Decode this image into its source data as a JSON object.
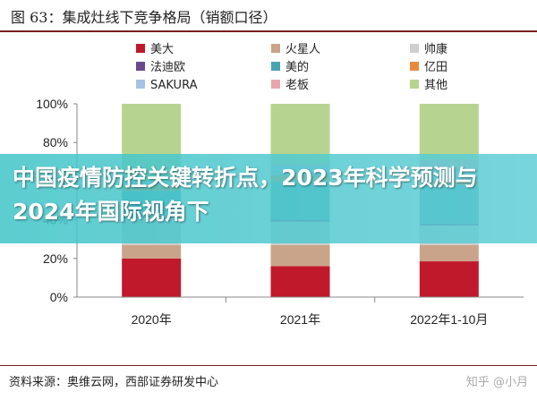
{
  "figure": {
    "title": "图 63：集成灶线下竞争格局（销额口径）",
    "source": "资料来源：奥维云网，西部证券研发中心",
    "watermark": "知乎 @小月"
  },
  "banner": {
    "text": "中国疫情防控关键转折点，2023年科学预测与2024年国际视角下"
  },
  "chart_data": {
    "type": "bar",
    "stacked": true,
    "categories": [
      "2020年",
      "2021年",
      "2022年1-10月"
    ],
    "ylim": [
      0,
      100
    ],
    "yticks": [
      "0%",
      "20%",
      "40%",
      "60%",
      "80%",
      "100%"
    ],
    "legend_position": "top",
    "series": [
      {
        "name": "美大",
        "color": "#c0192b",
        "values": [
          20,
          16,
          18.5
        ]
      },
      {
        "name": "火星人",
        "color": "#c9a48a",
        "values": [
          7,
          11,
          8.5
        ]
      },
      {
        "name": "帅康",
        "color": "#cfcfcf",
        "values": [
          14,
          12,
          10
        ]
      },
      {
        "name": "法迪欧",
        "color": "#6a4a8c",
        "values": [
          1,
          1,
          1
        ]
      },
      {
        "name": "美的",
        "color": "#4aa3b3",
        "values": [
          13,
          20,
          20
        ]
      },
      {
        "name": "亿田",
        "color": "#e88a3c",
        "values": [
          3,
          3,
          2
        ]
      },
      {
        "name": "SAKURA",
        "color": "#a9c1e3",
        "values": [
          2,
          5,
          6
        ]
      },
      {
        "name": "老板",
        "color": "#e7a6ad",
        "values": [
          0,
          1,
          5
        ]
      },
      {
        "name": "其他",
        "color": "#b6d48f",
        "values": [
          40,
          31,
          29
        ]
      }
    ]
  }
}
